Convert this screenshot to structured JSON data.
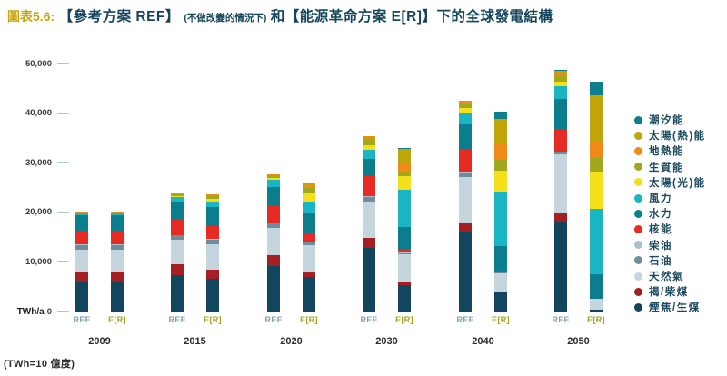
{
  "title": {
    "prefix": "圖表5.6:",
    "part1": "【參考方案 REF】",
    "paren": "(不做改變的情況下)",
    "part2": "和【能源革命方案 E[R]】下的全球發電結構"
  },
  "footnote": "(TWh=10 億度)",
  "colors": {
    "title_prefix": "#c7a40b",
    "title_text": "#15455c",
    "axis_tick": "#a5c8dc",
    "ref_label": "#7f9fb6",
    "er_label": "#a3a317"
  },
  "chart_data": {
    "type": "bar",
    "stacked": true,
    "title": "圖表5.6: 【參考方案 REF】(不做改變的情況下) 和【能源革命方案 E[R]】下的全球發電結構",
    "ylabel": "TWh/a",
    "unit_note": "TWh=10 億度",
    "ylim": [
      0,
      50000
    ],
    "grid": false,
    "legend_position": "right",
    "yticks": [
      {
        "value": 0,
        "label": "0"
      },
      {
        "value": 10000,
        "label": "10,000"
      },
      {
        "value": 20000,
        "label": "20,000"
      },
      {
        "value": 30000,
        "label": "30,000"
      },
      {
        "value": 40000,
        "label": "40,000"
      },
      {
        "value": 50000,
        "label": "50,000"
      }
    ],
    "scenario_labels": [
      "REF",
      "E[R]"
    ],
    "categories_bottom_to_top": [
      {
        "key": "hard-coal",
        "label": "煙焦/生煤",
        "color": "#12455e"
      },
      {
        "key": "lignite",
        "label": "褐/柴煤",
        "color": "#a51e23"
      },
      {
        "key": "natural-gas",
        "label": "天然氣",
        "color": "#c4d5de"
      },
      {
        "key": "oil",
        "label": "石油",
        "color": "#6d8d9d"
      },
      {
        "key": "diesel",
        "label": "柴油",
        "color": "#a9c1cd"
      },
      {
        "key": "nuclear",
        "label": "核能",
        "color": "#e62a24"
      },
      {
        "key": "hydro",
        "label": "水力",
        "color": "#0b7d8c"
      },
      {
        "key": "wind",
        "label": "風力",
        "color": "#1ab5c3"
      },
      {
        "key": "solar-pv",
        "label": "太陽(光)能",
        "color": "#f4e01a"
      },
      {
        "key": "biomass",
        "label": "生質能",
        "color": "#a0a91e"
      },
      {
        "key": "geothermal",
        "label": "地熱能",
        "color": "#f28a19"
      },
      {
        "key": "solar-thermal",
        "label": "太陽(熱)能",
        "color": "#bfa50a"
      },
      {
        "key": "ocean",
        "label": "潮汐能",
        "color": "#0f7f8f"
      }
    ],
    "groups": [
      {
        "year": "2009",
        "bars": [
          {
            "scenario": "REF",
            "values": [
              5900,
              2200,
              4300,
              1000,
              120,
              2700,
              3250,
              270,
              20,
              250,
              70,
              5,
              5
            ]
          },
          {
            "scenario": "E[R]",
            "values": [
              5900,
              2200,
              4300,
              1000,
              120,
              2700,
              3250,
              270,
              20,
              250,
              70,
              5,
              5
            ]
          }
        ]
      },
      {
        "year": "2015",
        "bars": [
          {
            "scenario": "REF",
            "values": [
              7400,
              2200,
              4800,
              950,
              130,
              3000,
              3650,
              900,
              250,
              450,
              100,
              60,
              10
            ]
          },
          {
            "scenario": "E[R]",
            "values": [
              6600,
              1900,
              5100,
              850,
              120,
              2700,
              3750,
              1150,
              550,
              650,
              180,
              120,
              15
            ]
          }
        ]
      },
      {
        "year": "2020",
        "bars": [
          {
            "scenario": "REF",
            "values": [
              9100,
              2200,
              5500,
              900,
              140,
              3350,
              3950,
              1450,
              350,
              550,
              130,
              90,
              20
            ]
          },
          {
            "scenario": "E[R]",
            "values": [
              6900,
              950,
              5550,
              600,
              100,
              1800,
              4000,
              2200,
              1800,
              1100,
              500,
              300,
              60
            ]
          }
        ]
      },
      {
        "year": "2030",
        "bars": [
          {
            "scenario": "REF",
            "values": [
              12900,
              1850,
              7500,
              900,
              150,
              4000,
              3500,
              1900,
              900,
              1200,
              300,
              300,
              30
            ]
          },
          {
            "scenario": "E[R]",
            "values": [
              5300,
              700,
              5500,
              250,
              80,
              900,
              4400,
              7500,
              2600,
              950,
              1800,
              2900,
              100
            ]
          }
        ]
      },
      {
        "year": "2040",
        "bars": [
          {
            "scenario": "REF",
            "values": [
              16100,
              1800,
              9300,
              900,
              150,
              4600,
              4900,
              2300,
              900,
              1000,
              300,
              300,
              30
            ]
          },
          {
            "scenario": "E[R]",
            "values": [
              3800,
              250,
              3700,
              200,
              50,
              300,
              4900,
              11000,
              4200,
              2200,
              3100,
              5100,
              1500
            ]
          }
        ]
      },
      {
        "year": "2050",
        "bars": [
          {
            "scenario": "REF",
            "values": [
              18100,
              1800,
              11700,
              550,
              150,
              4600,
              5900,
              2700,
              900,
              1300,
              500,
              400,
              50
            ]
          },
          {
            "scenario": "E[R]",
            "values": [
              350,
              50,
              2100,
              50,
              30,
              0,
              4900,
              13200,
              7500,
              2700,
              3500,
              9300,
              2600
            ]
          }
        ]
      }
    ]
  }
}
